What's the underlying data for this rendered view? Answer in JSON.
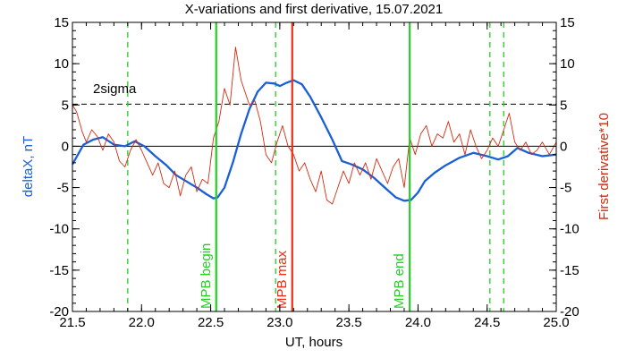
{
  "chart_data": {
    "type": "line",
    "title": "X-variations and first derivative, 15.07.2021",
    "xlabel": "UT, hours",
    "ylabel_left": "deltaX, nT",
    "ylabel_right": "First derivative*10",
    "xlim": [
      21.5,
      25.0
    ],
    "ylim": [
      -20,
      15
    ],
    "x_ticks": [
      21.5,
      22.0,
      22.5,
      23.0,
      23.5,
      24.0,
      24.5,
      25.0
    ],
    "x_tick_labels": [
      "21.5",
      "22.0",
      "22.5",
      "23.0",
      "23.5",
      "24.0",
      "24.5",
      "25.0"
    ],
    "y_ticks": [
      -20,
      -15,
      -10,
      -5,
      0,
      5,
      10,
      15
    ],
    "y_tick_labels": [
      "-20",
      "-15",
      "-10",
      "-5",
      "0",
      "5",
      "10",
      "15"
    ],
    "colors": {
      "deltaX": "#1a5fd6",
      "derivative": "#d42a10",
      "mpb": "#22d022",
      "max": "#f02c14",
      "axes": "#000000"
    },
    "zero_line": 0,
    "sigma_line": {
      "value": 5.1,
      "label": "2sigma"
    },
    "dashed_vlines": [
      21.9,
      22.97,
      24.52,
      24.62
    ],
    "solid_vlines": [
      {
        "x": 22.54,
        "label": "MPB begin",
        "kind": "mpb"
      },
      {
        "x": 23.09,
        "label": "MPB max",
        "kind": "max"
      },
      {
        "x": 23.94,
        "label": "MPB end",
        "kind": "mpb"
      }
    ],
    "series": [
      {
        "key": "deltaX",
        "x": [
          21.5,
          21.58,
          21.65,
          21.72,
          21.8,
          21.88,
          21.95,
          22.02,
          22.1,
          22.18,
          22.25,
          22.32,
          22.4,
          22.47,
          22.52,
          22.55,
          22.6,
          22.66,
          22.72,
          22.78,
          22.84,
          22.9,
          22.96,
          23.0,
          23.05,
          23.1,
          23.16,
          23.22,
          23.3,
          23.38,
          23.45,
          23.52,
          23.6,
          23.68,
          23.76,
          23.84,
          23.9,
          23.95,
          24.0,
          24.05,
          24.12,
          24.2,
          24.3,
          24.4,
          24.5,
          24.58,
          24.65,
          24.72,
          24.8,
          24.9,
          25.0
        ],
        "y": [
          -2.2,
          0.2,
          0.8,
          1.1,
          0.2,
          0.0,
          0.6,
          0.0,
          -1.2,
          -2.3,
          -3.5,
          -4.2,
          -5.0,
          -5.8,
          -6.3,
          -6.2,
          -5.0,
          -2.0,
          1.5,
          4.5,
          6.6,
          7.7,
          7.6,
          7.3,
          7.7,
          8.0,
          7.5,
          6.0,
          3.5,
          0.8,
          -1.8,
          -2.2,
          -2.8,
          -3.8,
          -5.0,
          -6.2,
          -6.6,
          -6.5,
          -5.6,
          -4.2,
          -3.2,
          -2.3,
          -1.4,
          -0.8,
          -1.2,
          -1.6,
          -1.2,
          -0.2,
          -0.8,
          -1.2,
          -1.0
        ]
      },
      {
        "key": "derivative",
        "x": [
          21.5,
          21.53,
          21.57,
          21.6,
          21.64,
          21.68,
          21.72,
          21.76,
          21.8,
          21.84,
          21.88,
          21.92,
          21.96,
          22.0,
          22.04,
          22.08,
          22.12,
          22.16,
          22.2,
          22.24,
          22.28,
          22.32,
          22.36,
          22.4,
          22.44,
          22.48,
          22.52,
          22.56,
          22.6,
          22.64,
          22.68,
          22.72,
          22.75,
          22.78,
          22.82,
          22.86,
          22.9,
          22.94,
          22.98,
          23.02,
          23.06,
          23.1,
          23.14,
          23.18,
          23.22,
          23.26,
          23.3,
          23.34,
          23.38,
          23.42,
          23.46,
          23.5,
          23.54,
          23.58,
          23.62,
          23.66,
          23.7,
          23.74,
          23.78,
          23.82,
          23.86,
          23.9,
          23.94,
          23.98,
          24.02,
          24.06,
          24.1,
          24.14,
          24.18,
          24.22,
          24.26,
          24.3,
          24.34,
          24.38,
          24.42,
          24.46,
          24.5,
          24.54,
          24.58,
          24.62,
          24.66,
          24.7,
          24.74,
          24.78,
          24.82,
          24.86,
          24.9,
          24.95,
          25.0
        ],
        "y": [
          5.0,
          4.2,
          1.8,
          0.5,
          2.0,
          1.2,
          -0.5,
          1.5,
          0.5,
          -1.8,
          -2.5,
          -0.5,
          0.8,
          -0.5,
          -2.0,
          -3.5,
          -2.0,
          -4.5,
          -5.0,
          -3.0,
          -6.0,
          -3.5,
          -2.5,
          -5.5,
          -4.0,
          -4.5,
          1.0,
          3.0,
          7.0,
          5.0,
          12.0,
          8.0,
          6.5,
          5.0,
          5.5,
          3.0,
          -1.0,
          -2.0,
          0.5,
          2.5,
          0.0,
          -1.0,
          -3.0,
          -2.0,
          -4.0,
          -5.5,
          -3.0,
          -6.5,
          -7.0,
          -5.0,
          -3.0,
          -4.5,
          -2.0,
          -3.5,
          -2.0,
          -4.0,
          -1.5,
          -3.0,
          -4.5,
          -2.5,
          -1.5,
          -5.0,
          1.0,
          -1.0,
          1.5,
          2.5,
          0.0,
          1.5,
          1.0,
          3.0,
          0.5,
          1.5,
          -1.0,
          2.0,
          0.0,
          -1.5,
          -0.5,
          1.0,
          0.0,
          2.0,
          4.0,
          0.5,
          -0.5,
          0.5,
          -1.0,
          -0.5,
          0.5,
          -1.0,
          0.5
        ]
      }
    ]
  }
}
